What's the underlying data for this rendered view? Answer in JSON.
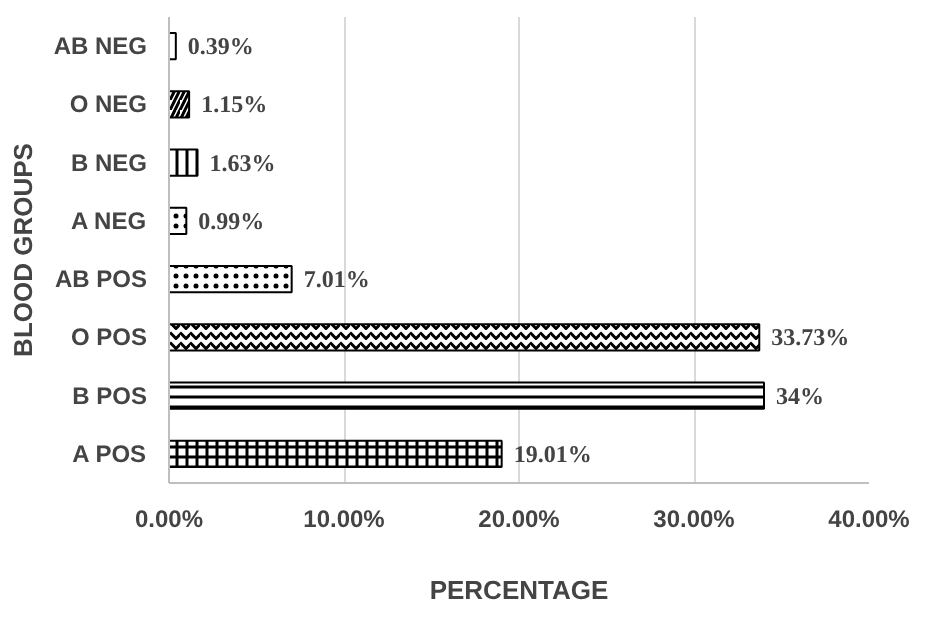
{
  "chart_data": {
    "type": "bar",
    "orientation": "horizontal",
    "xlabel": "PERCENTAGE",
    "ylabel": "BLOOD GROUPS",
    "categories": [
      "AB NEG",
      "O NEG",
      "B NEG",
      "A NEG",
      "AB POS",
      "O POS",
      "B POS",
      "A POS"
    ],
    "values": [
      0.39,
      1.15,
      1.63,
      0.99,
      7.01,
      33.73,
      34,
      19.01
    ],
    "value_labels": [
      "0.39%",
      "1.15%",
      "1.63%",
      "0.99%",
      "7.01%",
      "33.73%",
      "34%",
      "19.01%"
    ],
    "color": "#000000",
    "xlim": [
      0,
      40
    ],
    "xticks": [
      {
        "value": 0,
        "label": "0.00%"
      },
      {
        "value": 10,
        "label": "10.00%"
      },
      {
        "value": 20,
        "label": "20.00%"
      },
      {
        "value": 30,
        "label": "30.00%"
      },
      {
        "value": 40,
        "label": "40.00%"
      }
    ],
    "grid": "x"
  }
}
